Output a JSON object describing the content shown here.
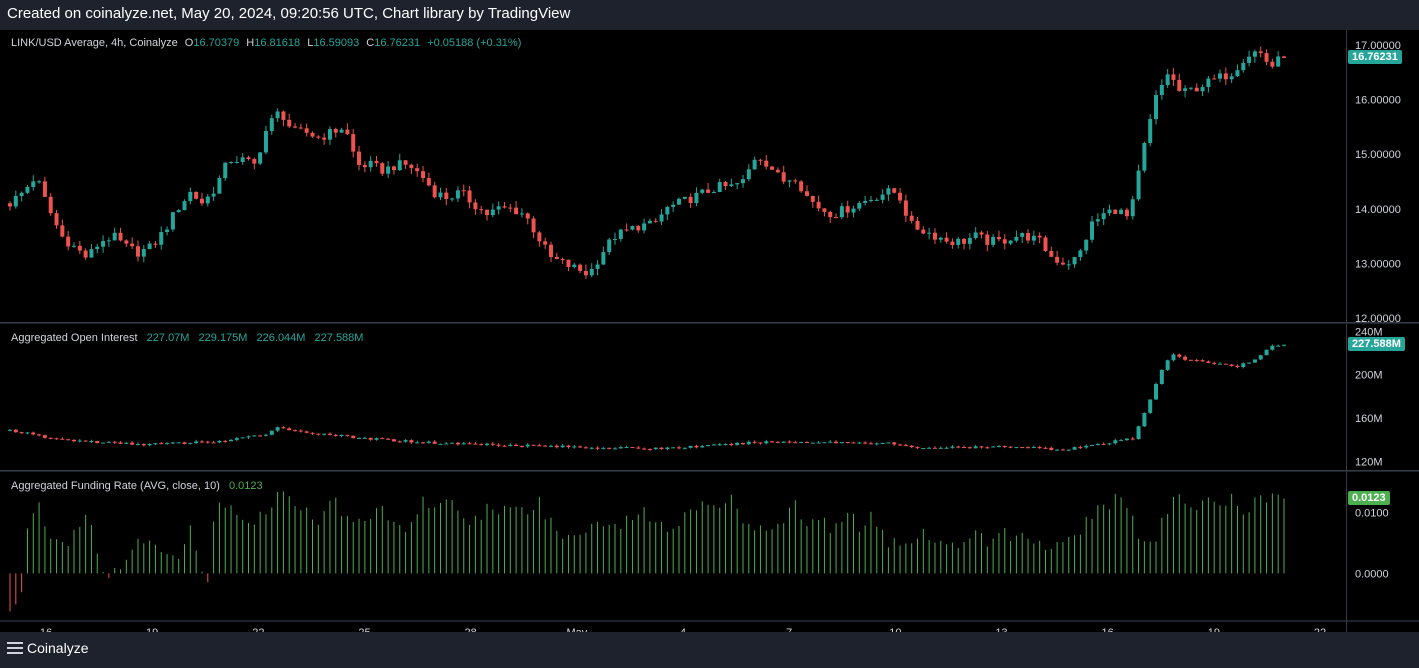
{
  "header": {
    "text": "Created on coinalyze.net, May 20, 2024, 09:20:56 UTC, Chart library by TradingView"
  },
  "footer": {
    "brand": "Coinalyze"
  },
  "colors": {
    "up": "#26a69a",
    "down": "#ef5350",
    "funding_pos": "#4caf50",
    "funding_neg": "#ef5350",
    "background": "#000000",
    "frame": "#1e222d"
  },
  "icons": {
    "menu": "hamburger-menu-icon"
  },
  "chart_data": [
    {
      "type": "candlestick",
      "title": "LINK/USD Average, 4h, Coinalyze",
      "ohlc_legend": {
        "o_label": "O",
        "o": "16.70379",
        "h_label": "H",
        "h": "16.81618",
        "l_label": "L",
        "l": "16.59093",
        "c_label": "C",
        "c": "16.76231",
        "change": "+0.05188 (+0.31%)"
      },
      "last_value_label": "16.76231",
      "last_value": 16.76231,
      "ylim": [
        12,
        17.2
      ],
      "y_ticks": [
        "12.00000",
        "13.00000",
        "14.00000",
        "15.00000",
        "16.00000",
        "17.00000"
      ],
      "close_path": [
        [
          0,
          14.1
        ],
        [
          6,
          14.3
        ],
        [
          12,
          14.6
        ],
        [
          18,
          14.0
        ],
        [
          24,
          13.5
        ],
        [
          30,
          13.3
        ],
        [
          36,
          13.1
        ],
        [
          42,
          13.4
        ],
        [
          48,
          13.5
        ],
        [
          54,
          13.3
        ],
        [
          60,
          13.2
        ],
        [
          66,
          13.3
        ],
        [
          72,
          13.6
        ],
        [
          78,
          14.0
        ],
        [
          84,
          14.3
        ],
        [
          90,
          14.1
        ],
        [
          96,
          14.4
        ],
        [
          102,
          14.9
        ],
        [
          108,
          14.9
        ],
        [
          114,
          14.8
        ],
        [
          120,
          15.5
        ],
        [
          126,
          15.8
        ],
        [
          132,
          15.4
        ],
        [
          138,
          15.4
        ],
        [
          144,
          15.3
        ],
        [
          150,
          15.4
        ],
        [
          156,
          15.5
        ],
        [
          162,
          14.8
        ],
        [
          168,
          14.8
        ],
        [
          174,
          14.7
        ],
        [
          180,
          14.8
        ],
        [
          186,
          14.8
        ],
        [
          192,
          14.6
        ],
        [
          198,
          14.3
        ],
        [
          204,
          14.2
        ],
        [
          210,
          14.3
        ],
        [
          216,
          14.1
        ],
        [
          222,
          13.9
        ],
        [
          228,
          14.0
        ],
        [
          234,
          14.0
        ],
        [
          240,
          13.9
        ],
        [
          246,
          13.5
        ],
        [
          252,
          13.1
        ],
        [
          258,
          13.0
        ],
        [
          264,
          12.9
        ],
        [
          270,
          12.8
        ],
        [
          276,
          13.2
        ],
        [
          282,
          13.5
        ],
        [
          288,
          13.6
        ],
        [
          294,
          13.7
        ],
        [
          300,
          13.7
        ],
        [
          306,
          14.0
        ],
        [
          312,
          14.1
        ],
        [
          318,
          14.2
        ],
        [
          324,
          14.3
        ],
        [
          330,
          14.4
        ],
        [
          336,
          14.4
        ],
        [
          342,
          14.5
        ],
        [
          348,
          15.0
        ],
        [
          354,
          14.8
        ],
        [
          360,
          14.5
        ],
        [
          366,
          14.6
        ],
        [
          372,
          14.2
        ],
        [
          378,
          14.0
        ],
        [
          384,
          13.9
        ],
        [
          390,
          14.0
        ],
        [
          396,
          14.1
        ],
        [
          402,
          14.2
        ],
        [
          408,
          14.3
        ],
        [
          414,
          14.3
        ],
        [
          420,
          13.7
        ],
        [
          426,
          13.6
        ],
        [
          432,
          13.5
        ],
        [
          438,
          13.4
        ],
        [
          444,
          13.4
        ],
        [
          450,
          13.5
        ],
        [
          456,
          13.4
        ],
        [
          462,
          13.4
        ],
        [
          468,
          13.5
        ],
        [
          474,
          13.5
        ],
        [
          480,
          13.4
        ],
        [
          486,
          13.1
        ],
        [
          492,
          13.0
        ],
        [
          498,
          13.1
        ],
        [
          504,
          13.7
        ],
        [
          510,
          13.9
        ],
        [
          516,
          14.0
        ],
        [
          522,
          13.8
        ],
        [
          528,
          15.0
        ],
        [
          534,
          16.0
        ],
        [
          540,
          16.5
        ],
        [
          546,
          16.1
        ],
        [
          552,
          16.2
        ],
        [
          558,
          16.3
        ],
        [
          564,
          16.4
        ],
        [
          570,
          16.5
        ],
        [
          576,
          16.8
        ],
        [
          582,
          16.9
        ],
        [
          588,
          16.6
        ],
        [
          594,
          16.8
        ]
      ],
      "x_tick_labels": [
        "16",
        "19",
        "22",
        "25",
        "28",
        "May",
        "4",
        "7",
        "10",
        "13",
        "16",
        "19",
        "22"
      ],
      "x_ticks_days": [
        0,
        3,
        6,
        9,
        12,
        15,
        18,
        21,
        24,
        27,
        30,
        33,
        36
      ]
    },
    {
      "type": "candlestick",
      "title": "Aggregated Open Interest",
      "legend_values": [
        "227.07M",
        "229.175M",
        "226.044M",
        "227.588M"
      ],
      "last_value_label": "227.588M",
      "last_value": 227.588,
      "ylim": [
        116,
        243
      ],
      "y_ticks": [
        "120M",
        "160M",
        "200M",
        "240M"
      ],
      "close_path": [
        [
          0,
          149
        ],
        [
          10,
          145
        ],
        [
          20,
          141
        ],
        [
          40,
          138
        ],
        [
          60,
          136
        ],
        [
          80,
          137
        ],
        [
          100,
          139
        ],
        [
          110,
          142
        ],
        [
          120,
          146
        ],
        [
          126,
          153
        ],
        [
          132,
          148
        ],
        [
          150,
          145
        ],
        [
          160,
          142
        ],
        [
          200,
          137
        ],
        [
          240,
          135
        ],
        [
          270,
          133
        ],
        [
          300,
          132
        ],
        [
          330,
          135
        ],
        [
          350,
          138
        ],
        [
          380,
          138
        ],
        [
          410,
          137
        ],
        [
          420,
          133
        ],
        [
          450,
          133
        ],
        [
          470,
          134
        ],
        [
          490,
          131
        ],
        [
          500,
          134
        ],
        [
          510,
          136
        ],
        [
          520,
          141
        ],
        [
          524,
          140
        ],
        [
          526,
          152
        ],
        [
          530,
          170
        ],
        [
          534,
          190
        ],
        [
          538,
          210
        ],
        [
          542,
          218
        ],
        [
          548,
          214
        ],
        [
          560,
          211
        ],
        [
          572,
          208
        ],
        [
          580,
          213
        ],
        [
          588,
          226
        ],
        [
          594,
          227.5
        ]
      ]
    },
    {
      "type": "bar",
      "title": "Aggregated Funding Rate (AVG, close, 10)",
      "legend_value": "0.0123",
      "last_value_label": "0.0123",
      "last_value": 0.0123,
      "ylim": [
        -0.007,
        0.016
      ],
      "y_ticks": [
        "0.0000",
        "0.0100"
      ],
      "value_path": [
        [
          0,
          -0.006
        ],
        [
          6,
          -0.003
        ],
        [
          8,
          0.007
        ],
        [
          12,
          0.012
        ],
        [
          16,
          0.009
        ],
        [
          20,
          0.006
        ],
        [
          26,
          0.005
        ],
        [
          32,
          0.008
        ],
        [
          36,
          0.011
        ],
        [
          40,
          0.004
        ],
        [
          44,
          0.001
        ],
        [
          46,
          -0.001
        ],
        [
          50,
          0.0005
        ],
        [
          54,
          0.002
        ],
        [
          60,
          0.005
        ],
        [
          66,
          0.006
        ],
        [
          72,
          0.004
        ],
        [
          78,
          0.003
        ],
        [
          84,
          0.007
        ],
        [
          88,
          0.001
        ],
        [
          92,
          -0.002
        ],
        [
          96,
          0.011
        ],
        [
          102,
          0.012
        ],
        [
          108,
          0.01
        ],
        [
          114,
          0.008
        ],
        [
          120,
          0.011
        ],
        [
          126,
          0.013
        ],
        [
          132,
          0.012
        ],
        [
          138,
          0.01
        ],
        [
          144,
          0.009
        ],
        [
          150,
          0.012
        ],
        [
          156,
          0.01
        ],
        [
          162,
          0.008
        ],
        [
          168,
          0.009
        ],
        [
          174,
          0.011
        ],
        [
          180,
          0.008
        ],
        [
          186,
          0.007
        ],
        [
          192,
          0.012
        ],
        [
          198,
          0.011
        ],
        [
          204,
          0.013
        ],
        [
          210,
          0.009
        ],
        [
          216,
          0.008
        ],
        [
          222,
          0.011
        ],
        [
          228,
          0.009
        ],
        [
          234,
          0.012
        ],
        [
          240,
          0.01
        ],
        [
          246,
          0.012
        ],
        [
          252,
          0.008
        ],
        [
          258,
          0.006
        ],
        [
          264,
          0.007
        ],
        [
          270,
          0.008
        ],
        [
          276,
          0.009
        ],
        [
          282,
          0.007
        ],
        [
          288,
          0.009
        ],
        [
          294,
          0.011
        ],
        [
          300,
          0.008
        ],
        [
          306,
          0.007
        ],
        [
          312,
          0.009
        ],
        [
          318,
          0.011
        ],
        [
          324,
          0.012
        ],
        [
          330,
          0.011
        ],
        [
          336,
          0.012
        ],
        [
          342,
          0.009
        ],
        [
          348,
          0.007
        ],
        [
          354,
          0.006
        ],
        [
          360,
          0.009
        ],
        [
          366,
          0.011
        ],
        [
          372,
          0.008
        ],
        [
          378,
          0.009
        ],
        [
          384,
          0.007
        ],
        [
          390,
          0.01
        ],
        [
          396,
          0.008
        ],
        [
          402,
          0.009
        ],
        [
          408,
          0.006
        ],
        [
          414,
          0.004
        ],
        [
          420,
          0.005
        ],
        [
          426,
          0.007
        ],
        [
          432,
          0.005
        ],
        [
          438,
          0.004
        ],
        [
          444,
          0.006
        ],
        [
          450,
          0.007
        ],
        [
          456,
          0.005
        ],
        [
          462,
          0.008
        ],
        [
          468,
          0.006
        ],
        [
          474,
          0.007
        ],
        [
          480,
          0.005
        ],
        [
          486,
          0.004
        ],
        [
          492,
          0.006
        ],
        [
          498,
          0.007
        ],
        [
          504,
          0.009
        ],
        [
          510,
          0.011
        ],
        [
          516,
          0.012
        ],
        [
          522,
          0.011
        ],
        [
          528,
          0.005
        ],
        [
          534,
          0.006
        ],
        [
          540,
          0.011
        ],
        [
          546,
          0.012
        ],
        [
          552,
          0.011
        ],
        [
          558,
          0.012
        ],
        [
          564,
          0.011
        ],
        [
          570,
          0.012
        ],
        [
          576,
          0.01
        ],
        [
          582,
          0.012
        ],
        [
          588,
          0.013
        ],
        [
          594,
          0.0123
        ]
      ]
    }
  ]
}
